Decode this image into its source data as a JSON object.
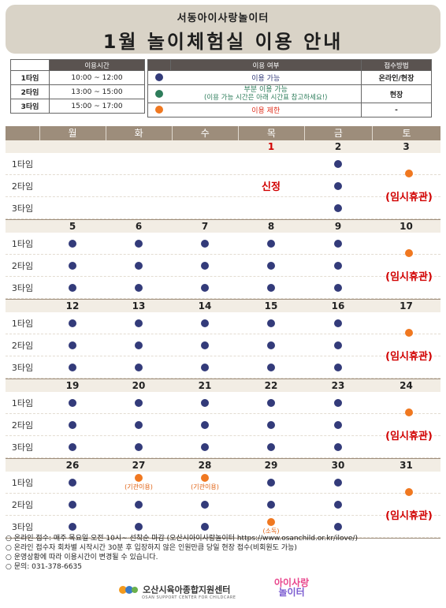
{
  "header": {
    "org": "서동아이사랑놀이터",
    "title": "1월 놀이체험실 이용 안내"
  },
  "legend_time": {
    "header": "이용시간",
    "rows": [
      {
        "slot": "1타임",
        "time": "10:00 ~ 12:00"
      },
      {
        "slot": "2타임",
        "time": "13:00 ~ 15:00"
      },
      {
        "slot": "3타임",
        "time": "15:00 ~ 17:00"
      }
    ]
  },
  "legend_usage": {
    "header_usage": "이용 여부",
    "header_method": "접수방법",
    "rows": [
      {
        "color": "navy",
        "text": "이용 가능",
        "subtext": "",
        "method": "온라인/현장"
      },
      {
        "color": "green",
        "text": "부분 이용 가능",
        "subtext": "(이용 가능 시간은 아래 시간표 참고하세요!)",
        "method": "현장"
      },
      {
        "color": "orange",
        "text": "이용 제한",
        "subtext": "",
        "method": "-"
      }
    ]
  },
  "colors": {
    "navy": "#333b7a",
    "green": "#2e7d5b",
    "orange": "#f07820",
    "red": "#d10000",
    "header_bg": "#d9d3c7",
    "day_head_bg": "#9d8d7b"
  },
  "days": [
    "월",
    "화",
    "수",
    "목",
    "금",
    "토"
  ],
  "slots": [
    "1타임",
    "2타임",
    "3타임"
  ],
  "weeks": [
    {
      "dates": [
        "",
        "",
        "",
        "1",
        "2",
        "3"
      ],
      "thu_text": "신정",
      "sat_text": "(임시휴관)",
      "cells": [
        [
          "",
          "",
          "",
          "holiday",
          "navy"
        ],
        [
          "",
          "",
          "",
          "holiday",
          "navy"
        ],
        [
          "",
          "",
          "",
          "holiday",
          "navy"
        ]
      ],
      "notes": [
        [
          "",
          "",
          "",
          "",
          ""
        ],
        [
          "",
          "",
          "",
          "",
          ""
        ],
        [
          "",
          "",
          "",
          "",
          ""
        ]
      ]
    },
    {
      "dates": [
        "5",
        "6",
        "7",
        "8",
        "9",
        "10"
      ],
      "sat_text": "(임시휴관)",
      "cells": [
        [
          "navy",
          "navy",
          "navy",
          "navy",
          "navy"
        ],
        [
          "navy",
          "navy",
          "navy",
          "navy",
          "navy"
        ],
        [
          "navy",
          "navy",
          "navy",
          "navy",
          "navy"
        ]
      ],
      "notes": [
        [
          "",
          "",
          "",
          "",
          ""
        ],
        [
          "",
          "",
          "",
          "",
          ""
        ],
        [
          "",
          "",
          "",
          "",
          ""
        ]
      ]
    },
    {
      "dates": [
        "12",
        "13",
        "14",
        "15",
        "16",
        "17"
      ],
      "sat_text": "(임시휴관)",
      "cells": [
        [
          "navy",
          "navy",
          "navy",
          "navy",
          "navy"
        ],
        [
          "navy",
          "navy",
          "navy",
          "navy",
          "navy"
        ],
        [
          "navy",
          "navy",
          "navy",
          "navy",
          "navy"
        ]
      ],
      "notes": [
        [
          "",
          "",
          "",
          "",
          ""
        ],
        [
          "",
          "",
          "",
          "",
          ""
        ],
        [
          "",
          "",
          "",
          "",
          ""
        ]
      ]
    },
    {
      "dates": [
        "19",
        "20",
        "21",
        "22",
        "23",
        "24"
      ],
      "sat_text": "(임시휴관)",
      "cells": [
        [
          "navy",
          "navy",
          "navy",
          "navy",
          "navy"
        ],
        [
          "navy",
          "navy",
          "navy",
          "navy",
          "navy"
        ],
        [
          "navy",
          "navy",
          "navy",
          "navy",
          "navy"
        ]
      ],
      "notes": [
        [
          "",
          "",
          "",
          "",
          ""
        ],
        [
          "",
          "",
          "",
          "",
          ""
        ],
        [
          "",
          "",
          "",
          "",
          ""
        ]
      ]
    },
    {
      "dates": [
        "26",
        "27",
        "28",
        "29",
        "30",
        "31"
      ],
      "sat_text": "(임시휴관)",
      "cells": [
        [
          "navy",
          "orange",
          "orange",
          "navy",
          "navy"
        ],
        [
          "navy",
          "navy",
          "navy",
          "navy",
          "navy"
        ],
        [
          "navy",
          "navy",
          "navy",
          "orange",
          "navy"
        ]
      ],
      "notes": [
        [
          "",
          "(기관이용)",
          "(기관이용)",
          "",
          ""
        ],
        [
          "",
          "",
          "",
          "",
          ""
        ],
        [
          "",
          "",
          "",
          "(소독)",
          ""
        ]
      ]
    }
  ],
  "footer": {
    "bullet": "○",
    "lines": [
      "온라인 접수: 매주 목요일 오전 10시~ 선착순 마감 (오산시아이사랑놀이터 https://www.osanchild.or.kr/ilove/)",
      "온라인 접수자 회차별 시작시간 30분 후 입장하지 않은 인원만큼 당일 현장 접수(비회원도 가능)",
      "운영상황에 따라 이용시간이 변경될 수 있습니다.",
      "문의: 031-378-6635"
    ]
  },
  "logos": {
    "center_name": "오산시육아종합지원센터",
    "center_sub": "OSAN SUPPORT CENTER FOR CHILDCARE",
    "play_logo_top": "아이사랑",
    "play_logo_bottom": "놀이터"
  }
}
